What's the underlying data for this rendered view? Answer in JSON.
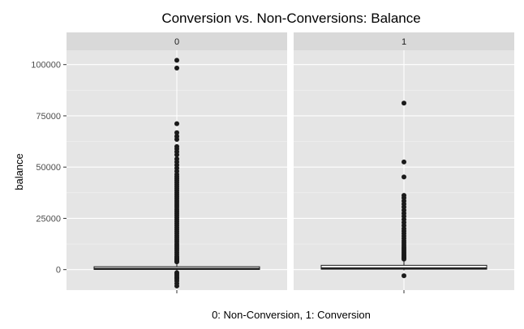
{
  "chart_data": {
    "type": "boxplot",
    "title": "Conversion vs. Non-Conversions: Balance",
    "xlabel": "0: Non-Conversion, 1: Conversion",
    "ylabel": "balance",
    "ylim": [
      -10000,
      107000
    ],
    "yticks": [
      0,
      25000,
      50000,
      75000,
      100000
    ],
    "ytick_labels": [
      "0",
      "25000",
      "50000",
      "75000",
      "100000"
    ],
    "grid": true,
    "facets": [
      {
        "label": "0",
        "box": {
          "q1": 70,
          "median": 450,
          "q3": 1400,
          "whisker_low": -500,
          "whisker_high": 3300
        },
        "outliers": [
          102100,
          98300,
          71200,
          66800,
          65000,
          63500,
          60000,
          58900,
          57500,
          56000,
          54000,
          52500,
          51000,
          49500,
          48000,
          46500,
          45500,
          44500,
          43500,
          42500,
          41500,
          40500,
          39500,
          38500,
          37500,
          36500,
          35500,
          34500,
          33500,
          32500,
          31500,
          30500,
          29500,
          28500,
          27500,
          26500,
          25500,
          24500,
          23500,
          22500,
          21500,
          20500,
          19500,
          18500,
          17500,
          16500,
          15500,
          14500,
          13500,
          12500,
          11500,
          10500,
          9500,
          8500,
          7500,
          6500,
          5800,
          5200,
          4700,
          4200,
          3800,
          -1500,
          -2200,
          -3000,
          -3800,
          -4500,
          -5500,
          -6800,
          -8000
        ]
      },
      {
        "label": "1",
        "box": {
          "q1": 200,
          "median": 700,
          "q3": 2100,
          "whisker_low": -300,
          "whisker_high": 4500
        },
        "outliers": [
          81200,
          52500,
          45200,
          36200,
          35000,
          33500,
          32000,
          30500,
          29000,
          27500,
          26000,
          24500,
          23000,
          21500,
          20000,
          18800,
          17600,
          16400,
          15200,
          14000,
          13000,
          12000,
          11000,
          10200,
          9400,
          8600,
          7800,
          7000,
          6300,
          5700,
          5100,
          -3000
        ]
      }
    ]
  },
  "colors": {
    "panel_bg": "#e5e5e5",
    "strip_bg": "#d9d9d9",
    "grid_major": "#ffffff",
    "point": "#1a1a1a",
    "box_fill": "#ffffff",
    "box_stroke": "#1a1a1a"
  }
}
